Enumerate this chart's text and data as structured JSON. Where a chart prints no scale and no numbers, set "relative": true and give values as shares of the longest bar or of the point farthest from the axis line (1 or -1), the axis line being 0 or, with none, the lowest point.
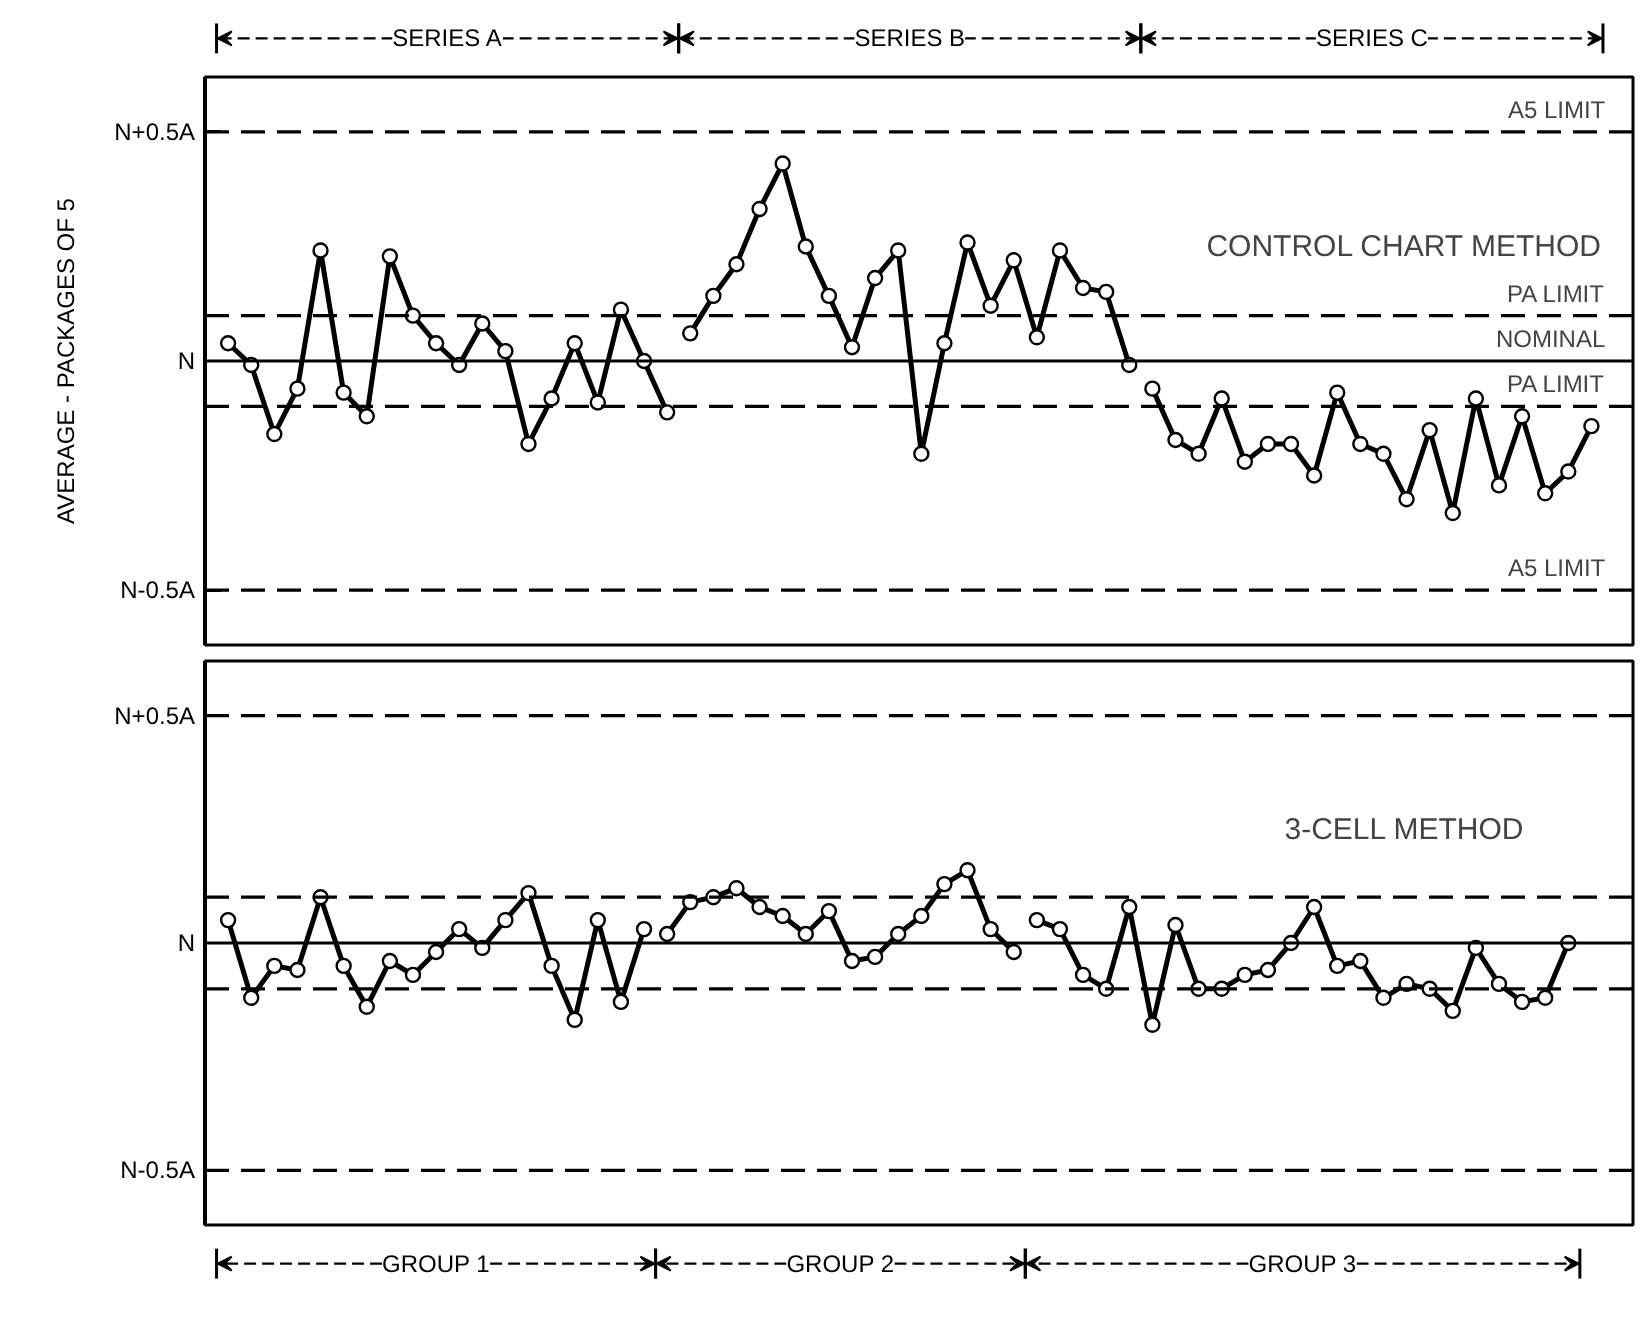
{
  "chart_data": [
    {
      "type": "line",
      "title": "CONTROL CHART METHOD",
      "ylabel": "AVERAGE - PACKAGES OF 5",
      "relative": true,
      "marker": "circle",
      "line_style": "solid",
      "grid": false,
      "tick_labels": false,
      "categories": [
        null,
        null,
        null,
        null,
        null,
        null,
        null,
        null,
        null,
        null,
        null,
        null,
        null,
        null,
        null,
        null,
        null,
        null,
        null,
        null,
        null,
        null,
        null,
        null,
        null,
        null,
        null,
        null,
        null,
        null,
        null,
        null,
        null,
        null,
        null,
        null,
        null,
        null,
        null,
        null,
        null,
        null,
        null,
        null,
        null,
        null,
        null,
        null,
        null,
        null,
        null,
        null,
        null,
        null,
        null,
        null,
        null,
        null,
        null,
        null
      ],
      "annotations": [
        "N+0.5A",
        "N",
        "N-0.5A",
        "SERIES A",
        "SERIES B",
        "SERIES C"
      ],
      "ref_lines": [
        {
          "axis": "y",
          "value": 1.16,
          "label": "A5 LIMIT",
          "line_style": "dashed"
        },
        {
          "axis": "y",
          "value": 0.23,
          "label": "PA LIMIT",
          "line_style": "dashed"
        },
        {
          "axis": "y",
          "value": 0,
          "label": "NOMINAL",
          "line_style": "solid"
        },
        {
          "axis": "y",
          "value": -0.23,
          "label": "PA LIMIT",
          "line_style": "dashed"
        },
        {
          "axis": "y",
          "value": -1.16,
          "label": "A5 LIMIT",
          "line_style": "dashed"
        }
      ],
      "series": [
        {
          "color": "#000000",
          "values": [
            0.09,
            -0.02,
            -0.37,
            -0.14,
            0.56,
            -0.16,
            -0.28,
            0.53,
            0.23,
            0.09,
            -0.02,
            0.19,
            0.05,
            -0.42,
            -0.19,
            0.09,
            -0.21,
            0.26,
            0,
            -0.26,
            null,
            null,
            null,
            null,
            null,
            null,
            null,
            null,
            null,
            null,
            null,
            null,
            null,
            null,
            null,
            null,
            null,
            null,
            null,
            null,
            null,
            null,
            null,
            null,
            null,
            null,
            null,
            null,
            null,
            null,
            null,
            null,
            null,
            null,
            null,
            null,
            null,
            null,
            null,
            null
          ]
        },
        {
          "color": "#000000",
          "values": [
            null,
            null,
            null,
            null,
            null,
            null,
            null,
            null,
            null,
            null,
            null,
            null,
            null,
            null,
            null,
            null,
            null,
            null,
            null,
            null,
            0.14,
            0.33,
            0.49,
            0.77,
            1,
            0.58,
            0.33,
            0.07,
            0.42,
            0.56,
            -0.47,
            0.09,
            0.6,
            0.28,
            0.51,
            0.12,
            0.56,
            0.37,
            0.35,
            -0.02,
            null,
            null,
            null,
            null,
            null,
            null,
            null,
            null,
            null,
            null,
            null,
            null,
            null,
            null,
            null,
            null,
            null,
            null,
            null,
            null
          ]
        },
        {
          "color": "#000000",
          "values": [
            null,
            null,
            null,
            null,
            null,
            null,
            null,
            null,
            null,
            null,
            null,
            null,
            null,
            null,
            null,
            null,
            null,
            null,
            null,
            null,
            null,
            null,
            null,
            null,
            null,
            null,
            null,
            null,
            null,
            null,
            null,
            null,
            null,
            null,
            null,
            null,
            null,
            null,
            null,
            null,
            -0.14,
            -0.4,
            -0.47,
            -0.19,
            -0.51,
            -0.42,
            -0.42,
            -0.58,
            -0.16,
            -0.42,
            -0.47,
            -0.7,
            -0.35,
            -0.77,
            -0.19,
            -0.63,
            -0.28,
            -0.67,
            -0.56,
            -0.33
          ]
        }
      ]
    },
    {
      "type": "line",
      "title": "3-CELL METHOD",
      "relative": true,
      "marker": "circle",
      "line_style": "solid",
      "grid": false,
      "tick_labels": false,
      "categories": [
        null,
        null,
        null,
        null,
        null,
        null,
        null,
        null,
        null,
        null,
        null,
        null,
        null,
        null,
        null,
        null,
        null,
        null,
        null,
        null,
        null,
        null,
        null,
        null,
        null,
        null,
        null,
        null,
        null,
        null,
        null,
        null,
        null,
        null,
        null,
        null,
        null,
        null,
        null,
        null,
        null,
        null,
        null,
        null,
        null,
        null,
        null,
        null,
        null,
        null,
        null,
        null,
        null,
        null,
        null,
        null,
        null,
        null,
        null,
        null
      ],
      "annotations": [
        "N+0.5A",
        "N",
        "N-0.5A",
        "GROUP 1",
        "GROUP 2",
        "GROUP 3"
      ],
      "ref_lines": [
        {
          "axis": "y",
          "value": 2.78,
          "line_style": "dashed"
        },
        {
          "axis": "y",
          "value": 0.56,
          "line_style": "dashed"
        },
        {
          "axis": "y",
          "value": 0,
          "line_style": "solid"
        },
        {
          "axis": "y",
          "value": -0.56,
          "line_style": "dashed"
        },
        {
          "axis": "y",
          "value": -2.78,
          "line_style": "dashed"
        }
      ],
      "series": [
        {
          "color": "#000000",
          "values": [
            0.28,
            -0.67,
            -0.28,
            -0.33,
            0.56,
            -0.28,
            -0.78,
            -0.22,
            -0.39,
            -0.11,
            0.17,
            -0.06,
            0.28,
            0.61,
            -0.28,
            -0.94,
            0.28,
            -0.72,
            0.17,
            null,
            null,
            null,
            null,
            null,
            null,
            null,
            null,
            null,
            null,
            null,
            null,
            null,
            null,
            null,
            null,
            null,
            null,
            null,
            null,
            null,
            null,
            null,
            null,
            null,
            null,
            null,
            null,
            null,
            null,
            null,
            null,
            null,
            null,
            null,
            null,
            null,
            null,
            null,
            null,
            null
          ]
        },
        {
          "color": "#000000",
          "values": [
            null,
            null,
            null,
            null,
            null,
            null,
            null,
            null,
            null,
            null,
            null,
            null,
            null,
            null,
            null,
            null,
            null,
            null,
            null,
            0.11,
            0.5,
            0.56,
            0.67,
            0.44,
            0.33,
            0.11,
            0.39,
            -0.22,
            -0.17,
            0.11,
            0.33,
            0.72,
            0.89,
            0.17,
            -0.11,
            null,
            null,
            null,
            null,
            null,
            null,
            null,
            null,
            null,
            null,
            null,
            null,
            null,
            null,
            null,
            null,
            null,
            null,
            null,
            null,
            null,
            null,
            null,
            null,
            null
          ]
        },
        {
          "color": "#000000",
          "values": [
            null,
            null,
            null,
            null,
            null,
            null,
            null,
            null,
            null,
            null,
            null,
            null,
            null,
            null,
            null,
            null,
            null,
            null,
            null,
            null,
            null,
            null,
            null,
            null,
            null,
            null,
            null,
            null,
            null,
            null,
            null,
            null,
            null,
            null,
            null,
            0.28,
            0.17,
            -0.39,
            -0.56,
            0.44,
            -1,
            0.22,
            -0.56,
            -0.56,
            -0.39,
            -0.33,
            0,
            0.44,
            -0.28,
            -0.22,
            -0.67,
            -0.5,
            -0.56,
            -0.83,
            -0.06,
            -0.5,
            -0.72,
            -0.67,
            0,
            null
          ]
        }
      ]
    }
  ]
}
